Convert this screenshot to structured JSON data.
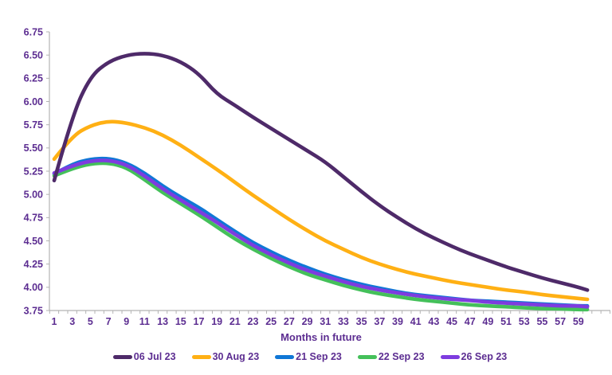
{
  "chart_data": {
    "type": "line",
    "title": "",
    "xlabel": "Months in future",
    "ylabel": "",
    "grid": false,
    "legend_position": "bottom",
    "x_months": [
      1,
      3,
      5,
      7,
      9,
      11,
      13,
      15,
      17,
      19,
      21,
      23,
      25,
      27,
      29,
      31,
      33,
      35,
      37,
      39,
      41,
      43,
      45,
      47,
      49,
      51,
      53,
      55,
      57,
      59,
      60
    ],
    "series": [
      {
        "name": "06 Jul 23",
        "color": "#4E2A69",
        "values": [
          5.15,
          5.85,
          6.27,
          6.43,
          6.5,
          6.52,
          6.5,
          6.43,
          6.3,
          6.08,
          5.96,
          5.83,
          5.71,
          5.59,
          5.47,
          5.35,
          5.19,
          5.03,
          4.88,
          4.75,
          4.63,
          4.53,
          4.44,
          4.36,
          4.29,
          4.22,
          4.16,
          4.1,
          4.05,
          4.0,
          3.97
        ]
      },
      {
        "name": "30 Aug 23",
        "color": "#FFB014",
        "values": [
          5.38,
          5.63,
          5.74,
          5.79,
          5.77,
          5.72,
          5.64,
          5.53,
          5.4,
          5.27,
          5.13,
          4.99,
          4.86,
          4.73,
          4.61,
          4.5,
          4.41,
          4.32,
          4.25,
          4.19,
          4.14,
          4.1,
          4.06,
          4.03,
          4.0,
          3.97,
          3.95,
          3.92,
          3.9,
          3.88,
          3.87
        ]
      },
      {
        "name": "21 Sep 23",
        "color": "#1077D6",
        "values": [
          5.22,
          5.33,
          5.38,
          5.39,
          5.34,
          5.23,
          5.09,
          4.97,
          4.86,
          4.73,
          4.6,
          4.48,
          4.38,
          4.29,
          4.21,
          4.14,
          4.08,
          4.03,
          3.99,
          3.95,
          3.92,
          3.9,
          3.88,
          3.86,
          3.85,
          3.84,
          3.83,
          3.82,
          3.81,
          3.8,
          3.8
        ]
      },
      {
        "name": "22 Sep 23",
        "color": "#44C05A",
        "values": [
          5.2,
          5.28,
          5.33,
          5.34,
          5.29,
          5.16,
          5.02,
          4.9,
          4.78,
          4.65,
          4.52,
          4.41,
          4.31,
          4.22,
          4.14,
          4.08,
          4.02,
          3.97,
          3.93,
          3.9,
          3.87,
          3.85,
          3.83,
          3.81,
          3.8,
          3.79,
          3.78,
          3.77,
          3.77,
          3.76,
          3.76
        ]
      },
      {
        "name": "26 Sep 23",
        "color": "#7E3CDF",
        "values": [
          5.23,
          5.31,
          5.36,
          5.37,
          5.32,
          5.2,
          5.06,
          4.94,
          4.82,
          4.7,
          4.57,
          4.45,
          4.35,
          4.26,
          4.18,
          4.12,
          4.06,
          4.01,
          3.97,
          3.94,
          3.91,
          3.89,
          3.87,
          3.86,
          3.84,
          3.83,
          3.82,
          3.81,
          3.8,
          3.8,
          3.79
        ]
      }
    ],
    "y_axis": {
      "min": 3.75,
      "max": 6.75,
      "tick_step": 0.25,
      "tick_labels": [
        "6.75",
        "6.50",
        "6.25",
        "6.00",
        "5.75",
        "5.50",
        "5.25",
        "5.00",
        "4.75",
        "4.50",
        "4.25",
        "4.00",
        "3.75"
      ]
    },
    "x_axis": {
      "months_range": [
        1,
        60
      ],
      "tick_labels": [
        "1",
        "3",
        "5",
        "7",
        "9",
        "11",
        "13",
        "15",
        "17",
        "19",
        "21",
        "23",
        "25",
        "27",
        "29",
        "31",
        "33",
        "35",
        "37",
        "39",
        "41",
        "43",
        "45",
        "47",
        "49",
        "51",
        "53",
        "55",
        "57",
        "59"
      ]
    },
    "colors": {
      "axis": "#B3B3B3",
      "text": "#5C2D91",
      "background": "#FFFFFF"
    }
  }
}
